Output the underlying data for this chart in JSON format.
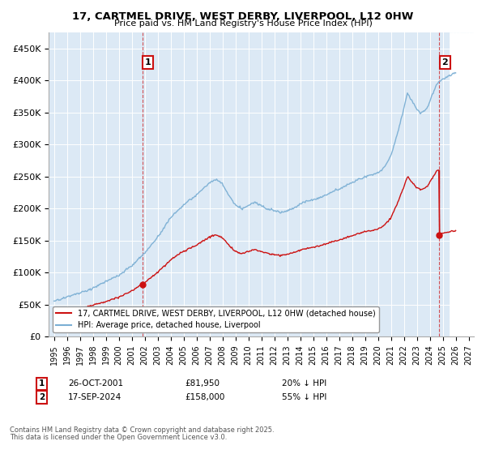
{
  "title": "17, CARTMEL DRIVE, WEST DERBY, LIVERPOOL, L12 0HW",
  "subtitle": "Price paid vs. HM Land Registry's House Price Index (HPI)",
  "ylim": [
    0,
    475000
  ],
  "yticks": [
    0,
    50000,
    100000,
    150000,
    200000,
    250000,
    300000,
    350000,
    400000,
    450000
  ],
  "ytick_labels": [
    "£0",
    "£50K",
    "£100K",
    "£150K",
    "£200K",
    "£250K",
    "£300K",
    "£350K",
    "£400K",
    "£450K"
  ],
  "xlim_start": 1994.6,
  "xlim_end": 2027.4,
  "hpi_color": "#7bafd4",
  "sale_color": "#cc1111",
  "transaction1_x": 2001.82,
  "transaction1_y": 81950,
  "transaction2_x": 2024.72,
  "transaction2_y": 158000,
  "legend_label_sale": "17, CARTMEL DRIVE, WEST DERBY, LIVERPOOL, L12 0HW (detached house)",
  "legend_label_hpi": "HPI: Average price, detached house, Liverpool",
  "annotation1_label": "1",
  "annotation2_label": "2",
  "background_color": "#ffffff",
  "plot_bg_color": "#dce9f5",
  "footer3": "Contains HM Land Registry data © Crown copyright and database right 2025.",
  "footer4": "This data is licensed under the Open Government Licence v3.0.",
  "hatch_start": 2025.5,
  "hatch_end": 2027.4
}
